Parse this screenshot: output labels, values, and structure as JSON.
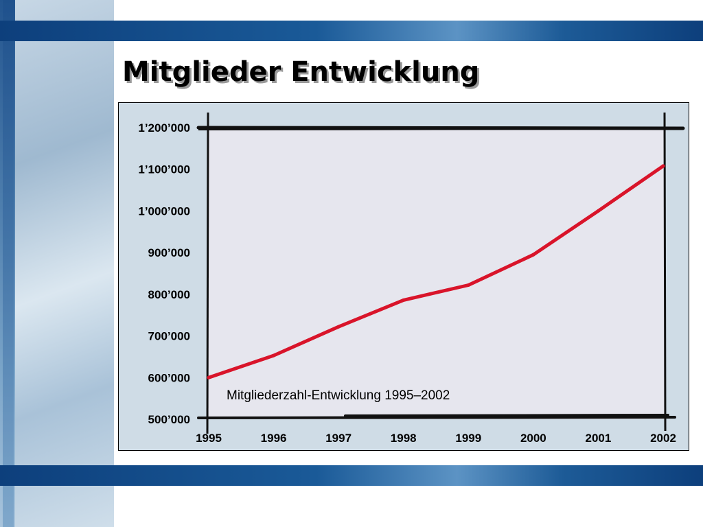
{
  "title": "Mitglieder Entwicklung",
  "colors": {
    "line": "#d9142a",
    "plot_bg": "#e6e6ee",
    "frame_bg": "#cfdce6"
  },
  "chart_data": {
    "type": "line",
    "title": "",
    "annotation": "Mitgliederzahl-Entwicklung 1995–2002",
    "xlabel": "",
    "ylabel": "",
    "categories": [
      "1995",
      "1996",
      "1997",
      "1998",
      "1999",
      "2000",
      "2001",
      "2002"
    ],
    "series": [
      {
        "values": [
          600000,
          653000,
          722000,
          786000,
          822000,
          895000,
          1000000,
          1108000
        ]
      }
    ],
    "ylim": [
      500000,
      1200000
    ],
    "yticks": [
      500000,
      600000,
      700000,
      800000,
      900000,
      1000000,
      1100000,
      1200000
    ],
    "ytick_labels": [
      "500’000",
      "600’000",
      "700’000",
      "800’000",
      "900’000",
      "1’000’000",
      "1’100’000",
      "1’200’000"
    ],
    "grid": false,
    "legend": "none"
  }
}
